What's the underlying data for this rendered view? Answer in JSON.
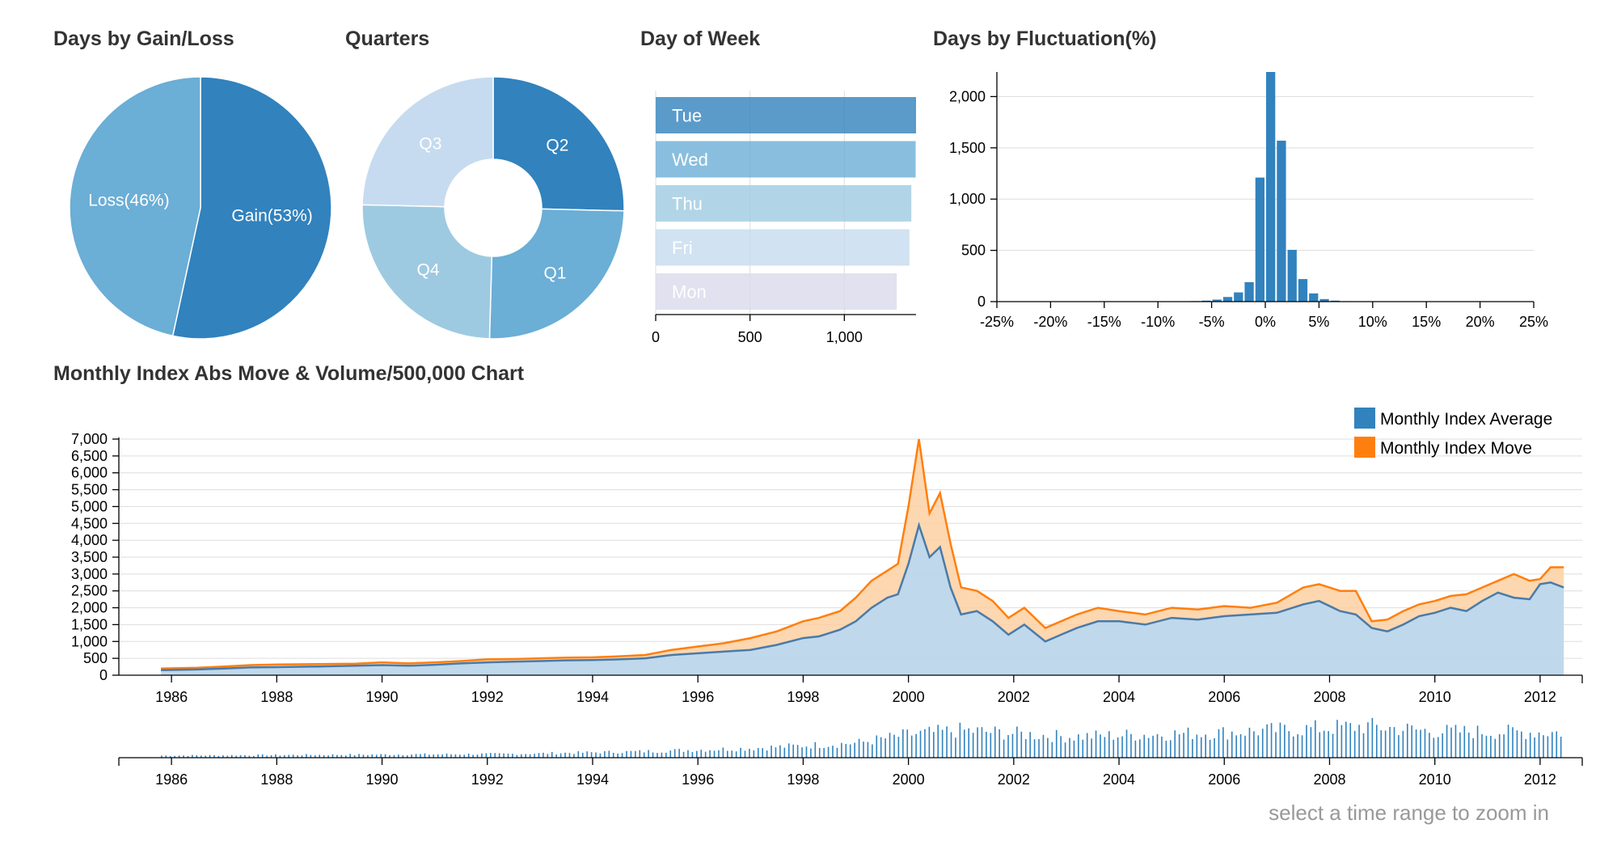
{
  "titles": {
    "gain_loss": "Days by Gain/Loss",
    "quarters": "Quarters",
    "day_of_week": "Day of Week",
    "fluctuation": "Days by Fluctuation(%)",
    "monthly": "Monthly Index Abs Move & Volume/500,000 Chart"
  },
  "hint": "select a time range to zoom in",
  "colors": {
    "blue_dark": "#3182bd",
    "blue_mid": "#6baed6",
    "blue_light": "#9ecae1",
    "blue_pale": "#c6dbef",
    "lavender": "#dadaeb",
    "orange": "#ff7f0e",
    "area_blue": "#bcd6ea",
    "area_orange": "#fdd0a2",
    "line_blue": "#4a7aa8"
  },
  "chart_data": [
    {
      "id": "gain_loss",
      "type": "pie",
      "slices": [
        {
          "label": "Gain(53%)",
          "value": 53.4
        },
        {
          "label": "Loss(46%)",
          "value": 46.6
        }
      ]
    },
    {
      "id": "quarters",
      "type": "pie",
      "donut": true,
      "slices": [
        {
          "label": "Q2",
          "value": 1710
        },
        {
          "label": "Q1",
          "value": 1690
        },
        {
          "label": "Q4",
          "value": 1680
        },
        {
          "label": "Q3",
          "value": 1660
        }
      ]
    },
    {
      "id": "day_of_week",
      "type": "bar",
      "orientation": "horizontal",
      "categories": [
        "Tue",
        "Wed",
        "Thu",
        "Fri",
        "Mon"
      ],
      "values": [
        1380,
        1378,
        1355,
        1345,
        1278
      ],
      "xlim": [
        0,
        1380
      ],
      "xticks": [
        0,
        500,
        1000
      ],
      "xtick_labels": [
        "0",
        "500",
        "1,000"
      ],
      "grid": true
    },
    {
      "id": "fluctuation",
      "type": "bar",
      "x": [
        -7.5,
        -6.5,
        -5.5,
        -4.5,
        -3.5,
        -2.5,
        -1.5,
        -0.5,
        0.5,
        1.5,
        2.5,
        3.5,
        4.5,
        5.5,
        6.5,
        7.5
      ],
      "values": [
        3,
        5,
        10,
        20,
        45,
        90,
        190,
        1210,
        2240,
        1570,
        505,
        220,
        80,
        25,
        10,
        4
      ],
      "xlim": [
        -25,
        25
      ],
      "ylim": [
        0,
        2240
      ],
      "xticks": [
        -25,
        -20,
        -15,
        -10,
        -5,
        0,
        5,
        10,
        15,
        20,
        25
      ],
      "xtick_labels": [
        "-25%",
        "-20%",
        "-15%",
        "-10%",
        "-5%",
        "0%",
        "5%",
        "10%",
        "15%",
        "20%",
        "25%"
      ],
      "yticks": [
        0,
        500,
        1000,
        1500,
        2000
      ],
      "ytick_labels": [
        "0",
        "500",
        "1,000",
        "1,500",
        "2,000"
      ],
      "grid": true
    },
    {
      "id": "monthly",
      "type": "area",
      "xlim": [
        1985.0,
        2012.8
      ],
      "ylim": [
        0,
        7000
      ],
      "xticks": [
        1986,
        1988,
        1990,
        1992,
        1994,
        1996,
        1998,
        2000,
        2002,
        2004,
        2006,
        2008,
        2010,
        2012
      ],
      "xtick_labels": [
        "1986",
        "1988",
        "1990",
        "1992",
        "1994",
        "1996",
        "1998",
        "2000",
        "2002",
        "2004",
        "2006",
        "2008",
        "2010",
        "2012"
      ],
      "yticks": [
        0,
        500,
        1000,
        1500,
        2000,
        2500,
        3000,
        3500,
        4000,
        4500,
        5000,
        5500,
        6000,
        6500,
        7000
      ],
      "ytick_labels": [
        "0",
        "500",
        "1,000",
        "1,500",
        "2,000",
        "2,500",
        "3,000",
        "3,500",
        "4,000",
        "4,500",
        "5,000",
        "5,500",
        "6,000",
        "6,500",
        "7,000"
      ],
      "legend_position": "top-right",
      "grid": true,
      "series": [
        {
          "name": "Monthly Index Average",
          "x": [
            1985.8,
            1986.5,
            1987.0,
            1987.5,
            1988.0,
            1988.8,
            1989.5,
            1990.0,
            1990.5,
            1991.0,
            1991.5,
            1992.0,
            1992.5,
            1993.0,
            1993.5,
            1994.0,
            1994.5,
            1995.0,
            1995.5,
            1996.0,
            1996.5,
            1997.0,
            1997.5,
            1998.0,
            1998.3,
            1998.7,
            1999.0,
            1999.3,
            1999.6,
            1999.8,
            2000.0,
            2000.2,
            2000.4,
            2000.6,
            2000.8,
            2001.0,
            2001.3,
            2001.6,
            2001.9,
            2002.2,
            2002.6,
            2002.9,
            2003.2,
            2003.6,
            2004.0,
            2004.5,
            2005.0,
            2005.5,
            2006.0,
            2006.5,
            2007.0,
            2007.5,
            2007.8,
            2008.2,
            2008.5,
            2008.8,
            2009.1,
            2009.4,
            2009.7,
            2010.0,
            2010.3,
            2010.6,
            2010.9,
            2011.2,
            2011.5,
            2011.8,
            2012.0,
            2012.2,
            2012.45
          ],
          "values": [
            150,
            170,
            200,
            230,
            240,
            260,
            280,
            300,
            280,
            310,
            350,
            380,
            400,
            420,
            440,
            450,
            470,
            500,
            600,
            650,
            700,
            750,
            900,
            1100,
            1150,
            1350,
            1600,
            2000,
            2300,
            2400,
            3300,
            4450,
            3500,
            3800,
            2600,
            1800,
            1900,
            1600,
            1200,
            1500,
            1000,
            1200,
            1400,
            1600,
            1600,
            1500,
            1700,
            1650,
            1750,
            1800,
            1850,
            2100,
            2200,
            1900,
            1800,
            1400,
            1300,
            1500,
            1750,
            1850,
            2000,
            1900,
            2200,
            2450,
            2300,
            2250,
            2700,
            2750,
            2600
          ]
        },
        {
          "name": "Monthly Index Move",
          "x": [
            1985.8,
            1986.5,
            1987.0,
            1987.5,
            1988.0,
            1988.8,
            1989.5,
            1990.0,
            1990.5,
            1991.0,
            1991.5,
            1992.0,
            1992.5,
            1993.0,
            1993.5,
            1994.0,
            1994.5,
            1995.0,
            1995.5,
            1996.0,
            1996.5,
            1997.0,
            1997.5,
            1998.0,
            1998.3,
            1998.7,
            1999.0,
            1999.3,
            1999.6,
            1999.8,
            2000.0,
            2000.2,
            2000.4,
            2000.6,
            2000.8,
            2001.0,
            2001.3,
            2001.6,
            2001.9,
            2002.2,
            2002.6,
            2002.9,
            2003.2,
            2003.6,
            2004.0,
            2004.5,
            2005.0,
            2005.5,
            2006.0,
            2006.5,
            2007.0,
            2007.5,
            2007.8,
            2008.2,
            2008.5,
            2008.8,
            2009.1,
            2009.4,
            2009.7,
            2010.0,
            2010.3,
            2010.6,
            2010.9,
            2011.2,
            2011.5,
            2011.8,
            2012.0,
            2012.2,
            2012.45
          ],
          "values": [
            200,
            220,
            260,
            300,
            320,
            330,
            340,
            380,
            350,
            380,
            420,
            470,
            480,
            500,
            520,
            530,
            560,
            600,
            750,
            850,
            950,
            1100,
            1300,
            1600,
            1700,
            1900,
            2300,
            2800,
            3100,
            3300,
            5000,
            7000,
            4800,
            5400,
            3900,
            2600,
            2500,
            2200,
            1700,
            2000,
            1400,
            1600,
            1800,
            2000,
            1900,
            1800,
            2000,
            1950,
            2050,
            2000,
            2150,
            2600,
            2700,
            2500,
            2500,
            1600,
            1650,
            1900,
            2100,
            2200,
            2350,
            2400,
            2600,
            2800,
            3000,
            2800,
            2850,
            3200,
            3200
          ]
        }
      ]
    },
    {
      "id": "volume",
      "type": "bar",
      "description_axis": "time",
      "xlim": [
        1985.0,
        2012.8
      ],
      "xticks": [
        1986,
        1988,
        1990,
        1992,
        1994,
        1996,
        1998,
        2000,
        2002,
        2004,
        2006,
        2008,
        2010,
        2012
      ],
      "xtick_labels": [
        "1986",
        "1988",
        "1990",
        "1992",
        "1994",
        "1996",
        "1998",
        "2000",
        "2002",
        "2004",
        "2006",
        "2008",
        "2010",
        "2012"
      ],
      "volume_anchor_x": [
        1985.8,
        1992.5,
        1995.0,
        1997.0,
        1999.0,
        2000.0,
        2001.0,
        2003.0,
        2006.0,
        2008.7,
        2010.0,
        2012.45
      ],
      "volume_anchor_values": [
        10,
        18,
        30,
        45,
        70,
        110,
        130,
        100,
        120,
        150,
        125,
        120
      ]
    }
  ]
}
